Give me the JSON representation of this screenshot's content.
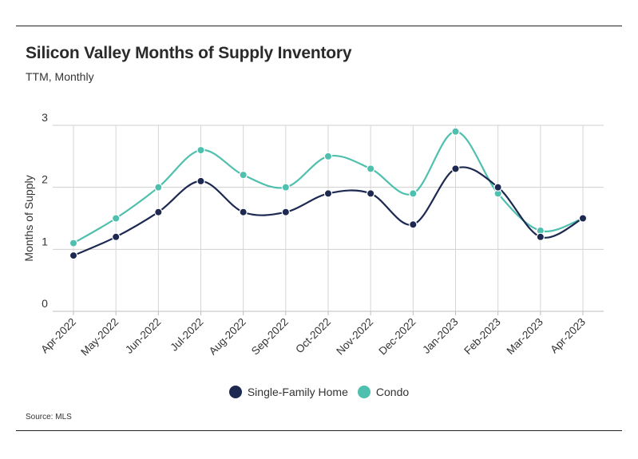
{
  "header": {
    "title": "Silicon Valley Months of Supply Inventory",
    "subtitle": "TTM, Monthly"
  },
  "footer": {
    "source": "Source:  MLS"
  },
  "chart_data": {
    "type": "line",
    "title": "Silicon Valley Months of Supply Inventory",
    "subtitle": "TTM, Monthly",
    "xlabel": "",
    "ylabel": "Months of Supply",
    "ylim": [
      0,
      3
    ],
    "yticks": [
      0,
      1,
      2,
      3
    ],
    "grid": true,
    "legend_position": "bottom",
    "categories": [
      "Apr-2022",
      "May-2022",
      "Jun-2022",
      "Jul-2022",
      "Aug-2022",
      "Sep-2022",
      "Oct-2022",
      "Nov-2022",
      "Dec-2022",
      "Jan-2023",
      "Feb-2023",
      "Mar-2023",
      "Apr-2023"
    ],
    "series": [
      {
        "name": "Single-Family Home",
        "color": "#1d2951",
        "values": [
          0.9,
          1.2,
          1.6,
          2.1,
          1.6,
          1.6,
          1.9,
          1.9,
          1.4,
          2.3,
          2.0,
          1.2,
          1.5
        ]
      },
      {
        "name": "Condo",
        "color": "#4fbfae",
        "values": [
          1.1,
          1.5,
          2.0,
          2.6,
          2.2,
          2.0,
          2.5,
          2.3,
          1.9,
          2.9,
          1.9,
          1.3,
          1.5
        ]
      }
    ]
  }
}
